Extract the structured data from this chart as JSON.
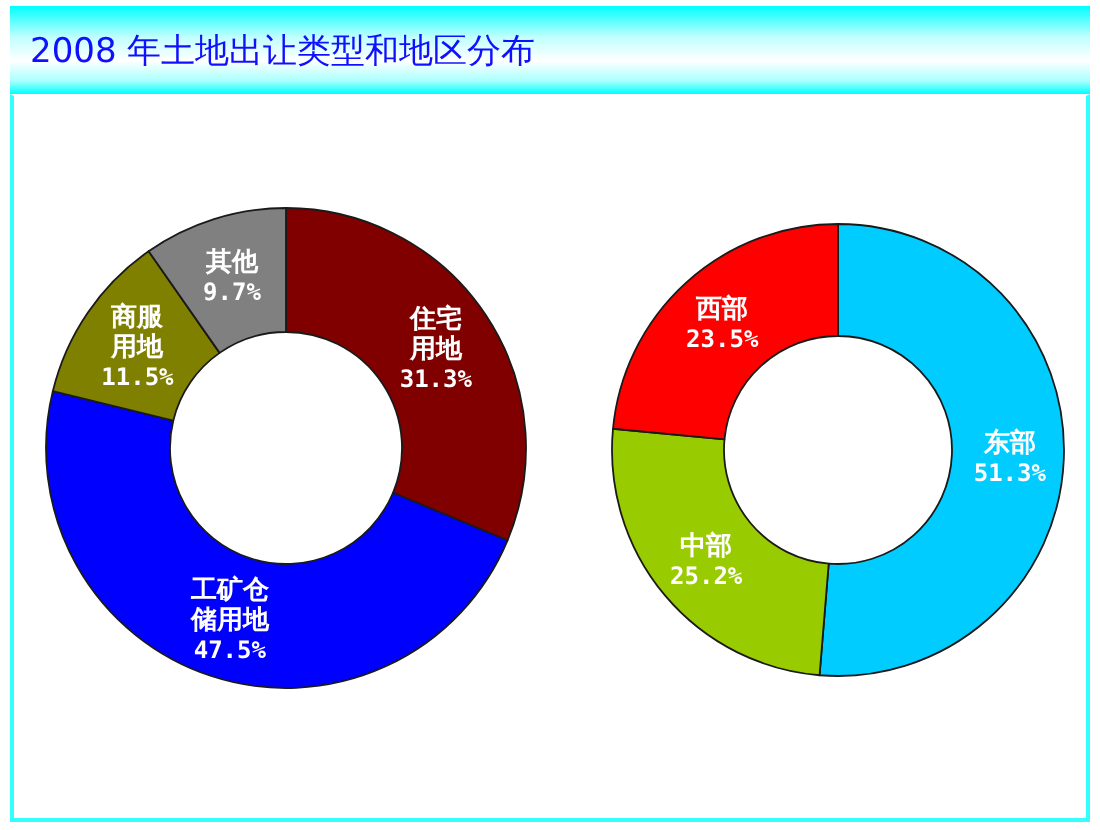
{
  "chart_data": [
    {
      "type": "donut",
      "title": "2008 年土地出让类型和地区分布",
      "categories": [
        "住宅用地",
        "工矿仓储用地",
        "商服用地",
        "其他"
      ],
      "values": [
        31.3,
        47.5,
        11.5,
        9.7
      ],
      "colors": [
        "#800000",
        "#0000ff",
        "#808000",
        "#808080"
      ],
      "value_labels": [
        "31.3%",
        "47.5%",
        "11.5%",
        "9.7%"
      ]
    },
    {
      "type": "donut",
      "categories": [
        "东部",
        "中部",
        "西部"
      ],
      "values": [
        51.3,
        25.2,
        23.5
      ],
      "colors": [
        "#00ccff",
        "#99cc00",
        "#ff0000"
      ],
      "value_labels": [
        "51.3%",
        "25.2%",
        "23.5%"
      ]
    }
  ]
}
